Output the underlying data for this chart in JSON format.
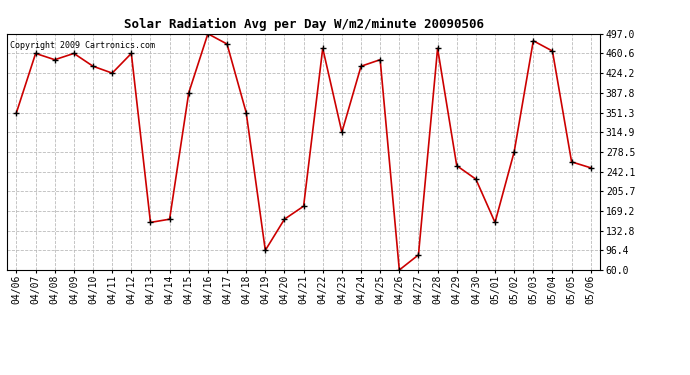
{
  "title": "Solar Radiation Avg per Day W/m2/minute 20090506",
  "copyright_text": "Copyright 2009 Cartronics.com",
  "x_labels": [
    "04/06",
    "04/07",
    "04/08",
    "04/09",
    "04/10",
    "04/11",
    "04/12",
    "04/13",
    "04/14",
    "04/15",
    "04/16",
    "04/17",
    "04/18",
    "04/19",
    "04/20",
    "04/21",
    "04/22",
    "04/23",
    "04/24",
    "04/25",
    "04/26",
    "04/27",
    "04/28",
    "04/29",
    "04/30",
    "05/01",
    "05/02",
    "05/03",
    "05/04",
    "05/05",
    "05/06"
  ],
  "y_values": [
    351.3,
    460.6,
    449.0,
    460.6,
    436.9,
    424.2,
    460.6,
    148.0,
    154.0,
    387.8,
    497.0,
    478.0,
    351.3,
    96.4,
    154.0,
    178.0,
    470.0,
    314.9,
    436.9,
    449.0,
    60.0,
    88.0,
    470.0,
    253.0,
    228.0,
    148.0,
    278.5,
    484.0,
    465.0,
    260.0,
    249.0
  ],
  "y_min": 60.0,
  "y_max": 497.0,
  "y_ticks": [
    60.0,
    96.4,
    132.8,
    169.2,
    205.7,
    242.1,
    278.5,
    314.9,
    351.3,
    387.8,
    424.2,
    460.6,
    497.0
  ],
  "line_color": "#cc0000",
  "marker_color": "#000000",
  "bg_color": "#ffffff",
  "plot_bg_color": "#ffffff",
  "grid_color": "#bbbbbb",
  "title_fontsize": 9,
  "copyright_fontsize": 6,
  "tick_fontsize": 7
}
